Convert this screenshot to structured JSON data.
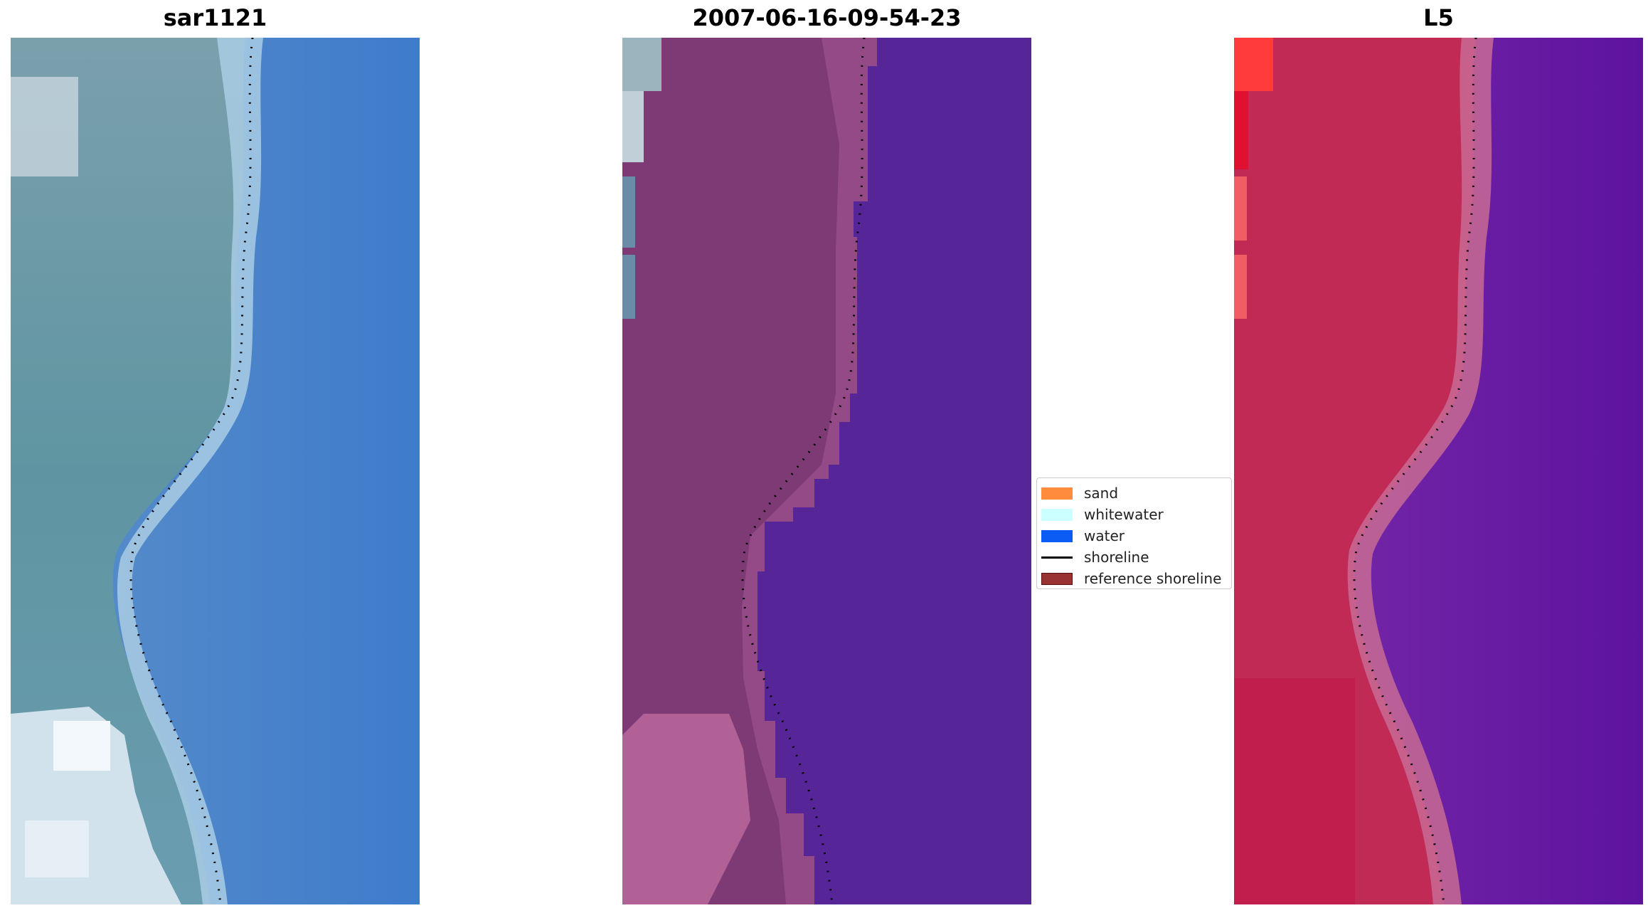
{
  "panels": [
    {
      "title": "sar1121"
    },
    {
      "title": "2007-06-16-09-54-23"
    },
    {
      "title": "L5"
    }
  ],
  "legend": {
    "items": [
      {
        "label": "sand",
        "kind": "patch",
        "color": "#ff8c3c"
      },
      {
        "label": "whitewater",
        "kind": "patch",
        "color": "#ccffff"
      },
      {
        "label": "water",
        "kind": "patch",
        "color": "#0a5cf5"
      },
      {
        "label": "shoreline",
        "kind": "line",
        "color": "#000000"
      },
      {
        "label": "reference shoreline",
        "kind": "patch",
        "color": "#993333"
      }
    ]
  },
  "colors": {
    "rgb_land": "#5f96a3",
    "rgb_water": "#3d7cc4",
    "rgb_surf": "#b8d8ee",
    "class_land": "#7d3a74",
    "class_water": "#562597",
    "index_land": "#c12a55",
    "index_water": "#6a1fa6"
  }
}
